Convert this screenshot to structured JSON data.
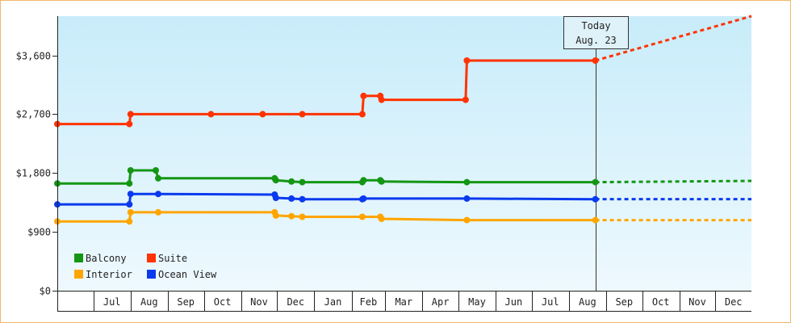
{
  "chart_data": {
    "type": "line",
    "title": "",
    "xlabel": "",
    "ylabel": "",
    "ylim": [
      0,
      4200
    ],
    "y_ticks": [
      0,
      900,
      1800,
      2700,
      3600
    ],
    "y_tick_labels": [
      "$0",
      "$900",
      "$1,800",
      "$2,700",
      "$3,600"
    ],
    "x_range": [
      "2022-06-01",
      "2023-12-31"
    ],
    "x_month_labels": [
      {
        "label": "Jul",
        "date": "2022-07-01"
      },
      {
        "label": "Aug",
        "date": "2022-08-01"
      },
      {
        "label": "Sep",
        "date": "2022-09-01"
      },
      {
        "label": "Oct",
        "date": "2022-10-01"
      },
      {
        "label": "Nov",
        "date": "2022-11-01"
      },
      {
        "label": "Dec",
        "date": "2022-12-01"
      },
      {
        "label": "Jan",
        "date": "2023-01-01"
      },
      {
        "label": "Feb",
        "date": "2023-02-01"
      },
      {
        "label": "Mar",
        "date": "2023-03-01"
      },
      {
        "label": "Apr",
        "date": "2023-04-01"
      },
      {
        "label": "May",
        "date": "2023-05-01"
      },
      {
        "label": "Jun",
        "date": "2023-06-01"
      },
      {
        "label": "Jul",
        "date": "2023-07-01"
      },
      {
        "label": "Aug",
        "date": "2023-08-01"
      },
      {
        "label": "Sep",
        "date": "2023-09-01"
      },
      {
        "label": "Oct",
        "date": "2023-10-01"
      },
      {
        "label": "Nov",
        "date": "2023-11-01"
      },
      {
        "label": "Dec",
        "date": "2023-12-01"
      }
    ],
    "today": {
      "line1": "Today",
      "line2": "Aug. 23",
      "date": "2023-08-23"
    },
    "grid": false,
    "legend_position": "bottom-left",
    "series": [
      {
        "name": "Balcony",
        "color": "#149614",
        "points": [
          {
            "date": "2022-06-01",
            "value": 1640
          },
          {
            "date": "2022-07-31",
            "value": 1640
          },
          {
            "date": "2022-08-01",
            "value": 1840
          },
          {
            "date": "2022-08-22",
            "value": 1840
          },
          {
            "date": "2022-08-24",
            "value": 1720
          },
          {
            "date": "2022-11-29",
            "value": 1720
          },
          {
            "date": "2022-11-30",
            "value": 1690
          },
          {
            "date": "2022-12-13",
            "value": 1670
          },
          {
            "date": "2022-12-22",
            "value": 1660
          },
          {
            "date": "2023-02-10",
            "value": 1660
          },
          {
            "date": "2023-02-11",
            "value": 1690
          },
          {
            "date": "2023-02-25",
            "value": 1690
          },
          {
            "date": "2023-02-26",
            "value": 1670
          },
          {
            "date": "2023-05-08",
            "value": 1660
          },
          {
            "date": "2023-08-23",
            "value": 1660
          }
        ],
        "forecast": [
          {
            "date": "2023-08-23",
            "value": 1660
          },
          {
            "date": "2023-12-31",
            "value": 1680
          }
        ]
      },
      {
        "name": "Suite",
        "color": "#ff3300",
        "points": [
          {
            "date": "2022-06-01",
            "value": 2550
          },
          {
            "date": "2022-07-31",
            "value": 2550
          },
          {
            "date": "2022-08-01",
            "value": 2700
          },
          {
            "date": "2022-10-07",
            "value": 2700
          },
          {
            "date": "2022-11-19",
            "value": 2700
          },
          {
            "date": "2022-12-22",
            "value": 2700
          },
          {
            "date": "2023-02-10",
            "value": 2700
          },
          {
            "date": "2023-02-11",
            "value": 2980
          },
          {
            "date": "2023-02-25",
            "value": 2980
          },
          {
            "date": "2023-02-26",
            "value": 2920
          },
          {
            "date": "2023-05-07",
            "value": 2920
          },
          {
            "date": "2023-05-08",
            "value": 3520
          },
          {
            "date": "2023-08-23",
            "value": 3520
          }
        ],
        "forecast": [
          {
            "date": "2023-08-23",
            "value": 3520
          },
          {
            "date": "2023-12-31",
            "value": 4200
          }
        ]
      },
      {
        "name": "Interior",
        "color": "#ffa500",
        "points": [
          {
            "date": "2022-06-01",
            "value": 1060
          },
          {
            "date": "2022-07-31",
            "value": 1060
          },
          {
            "date": "2022-08-01",
            "value": 1200
          },
          {
            "date": "2022-08-24",
            "value": 1200
          },
          {
            "date": "2022-11-29",
            "value": 1200
          },
          {
            "date": "2022-11-30",
            "value": 1150
          },
          {
            "date": "2022-12-13",
            "value": 1140
          },
          {
            "date": "2022-12-22",
            "value": 1130
          },
          {
            "date": "2023-02-10",
            "value": 1130
          },
          {
            "date": "2023-02-25",
            "value": 1130
          },
          {
            "date": "2023-02-26",
            "value": 1100
          },
          {
            "date": "2023-05-08",
            "value": 1080
          },
          {
            "date": "2023-08-23",
            "value": 1080
          }
        ],
        "forecast": [
          {
            "date": "2023-08-23",
            "value": 1080
          },
          {
            "date": "2023-12-31",
            "value": 1080
          }
        ]
      },
      {
        "name": "Ocean View",
        "color": "#0a3aee",
        "points": [
          {
            "date": "2022-06-01",
            "value": 1320
          },
          {
            "date": "2022-07-31",
            "value": 1320
          },
          {
            "date": "2022-08-01",
            "value": 1480
          },
          {
            "date": "2022-08-24",
            "value": 1480
          },
          {
            "date": "2022-11-29",
            "value": 1470
          },
          {
            "date": "2022-11-30",
            "value": 1420
          },
          {
            "date": "2022-12-13",
            "value": 1410
          },
          {
            "date": "2022-12-22",
            "value": 1400
          },
          {
            "date": "2023-02-10",
            "value": 1400
          },
          {
            "date": "2023-02-11",
            "value": 1410
          },
          {
            "date": "2023-05-08",
            "value": 1410
          },
          {
            "date": "2023-08-23",
            "value": 1400
          }
        ],
        "forecast": [
          {
            "date": "2023-08-23",
            "value": 1400
          },
          {
            "date": "2023-12-31",
            "value": 1400
          }
        ]
      }
    ],
    "legend": [
      {
        "name": "Balcony",
        "color": "#149614"
      },
      {
        "name": "Suite",
        "color": "#ff3300"
      },
      {
        "name": "Interior",
        "color": "#ffa500"
      },
      {
        "name": "Ocean View",
        "color": "#0a3aee"
      }
    ]
  }
}
